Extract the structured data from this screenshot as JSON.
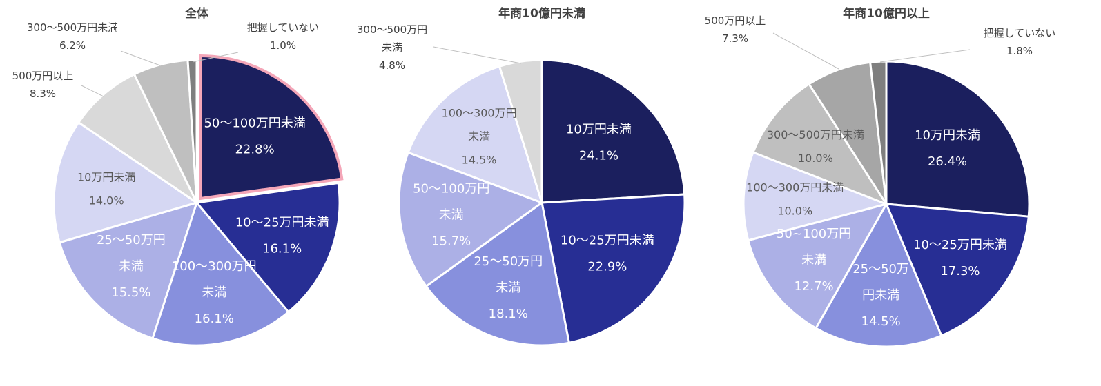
{
  "chart_data": [
    {
      "type": "pie",
      "title": "全体",
      "slices": [
        {
          "label": [
            "50～100万円未満"
          ],
          "value": 22.8,
          "pct": "22.8%",
          "color": "#1b1f5e",
          "highlight": true,
          "text": "dark"
        },
        {
          "label": [
            "10～25万円未満"
          ],
          "value": 16.1,
          "pct": "16.1%",
          "color": "#272e94",
          "text": "dark"
        },
        {
          "label": [
            "100～300万円",
            "未満"
          ],
          "value": 16.1,
          "pct": "16.1%",
          "color": "#8790dd",
          "text": "dark"
        },
        {
          "label": [
            "25～50万円",
            "未満"
          ],
          "value": 15.5,
          "pct": "15.5%",
          "color": "#acb0e6",
          "text": "dark"
        },
        {
          "label": [
            "10万円未満"
          ],
          "value": 14.0,
          "pct": "14.0%",
          "color": "#d5d7f3",
          "text": "light"
        },
        {
          "label": [
            "500万円以上"
          ],
          "value": 8.3,
          "pct": "8.3%",
          "color": "#d9d9d9",
          "text": "out"
        },
        {
          "label": [
            "300～500万円未満"
          ],
          "value": 6.2,
          "pct": "6.2%",
          "color": "#bfbfbf",
          "text": "out"
        },
        {
          "label": [
            "把握していない"
          ],
          "value": 1.0,
          "pct": "1.0%",
          "color": "#7f7f7f",
          "text": "out"
        }
      ]
    },
    {
      "type": "pie",
      "title": "年商10億円未満",
      "slices": [
        {
          "label": [
            "10万円未満"
          ],
          "value": 24.1,
          "pct": "24.1%",
          "color": "#1b1f5e",
          "text": "dark"
        },
        {
          "label": [
            "10～25万円未満"
          ],
          "value": 22.9,
          "pct": "22.9%",
          "color": "#272e94",
          "text": "dark"
        },
        {
          "label": [
            "25～50万円",
            "未満"
          ],
          "value": 18.1,
          "pct": "18.1%",
          "color": "#8790dd",
          "text": "dark"
        },
        {
          "label": [
            "50～100万円",
            "未満"
          ],
          "value": 15.7,
          "pct": "15.7%",
          "color": "#acb0e6",
          "text": "dark"
        },
        {
          "label": [
            "100～300万円",
            "未満"
          ],
          "value": 14.5,
          "pct": "14.5%",
          "color": "#d5d7f3",
          "text": "light"
        },
        {
          "label": [
            "300～500万円",
            "未満"
          ],
          "value": 4.8,
          "pct": "4.8%",
          "color": "#d9d9d9",
          "text": "out"
        }
      ]
    },
    {
      "type": "pie",
      "title": "年商10億円以上",
      "slices": [
        {
          "label": [
            "10万円未満"
          ],
          "value": 26.4,
          "pct": "26.4%",
          "color": "#1b1f5e",
          "text": "dark"
        },
        {
          "label": [
            "10～25万円未満"
          ],
          "value": 17.3,
          "pct": "17.3%",
          "color": "#272e94",
          "text": "dark"
        },
        {
          "label": [
            "25～50万",
            "円未満"
          ],
          "value": 14.5,
          "pct": "14.5%",
          "color": "#8790dd",
          "text": "dark"
        },
        {
          "label": [
            "50~100万円",
            "未満"
          ],
          "value": 12.7,
          "pct": "12.7%",
          "color": "#acb0e6",
          "text": "dark"
        },
        {
          "label": [
            "100～300万円未満"
          ],
          "value": 10.0,
          "pct": "10.0%",
          "color": "#d5d7f3",
          "text": "light"
        },
        {
          "label": [
            "300～500万円未満"
          ],
          "value": 10.0,
          "pct": "10.0%",
          "color": "#bfbfbf",
          "text": "light"
        },
        {
          "label": [
            "500万円以上"
          ],
          "value": 7.3,
          "pct": "7.3%",
          "color": "#a6a6a6",
          "text": "out"
        },
        {
          "label": [
            "把握していない"
          ],
          "value": 1.8,
          "pct": "1.8%",
          "color": "#7f7f7f",
          "text": "out"
        }
      ]
    }
  ]
}
